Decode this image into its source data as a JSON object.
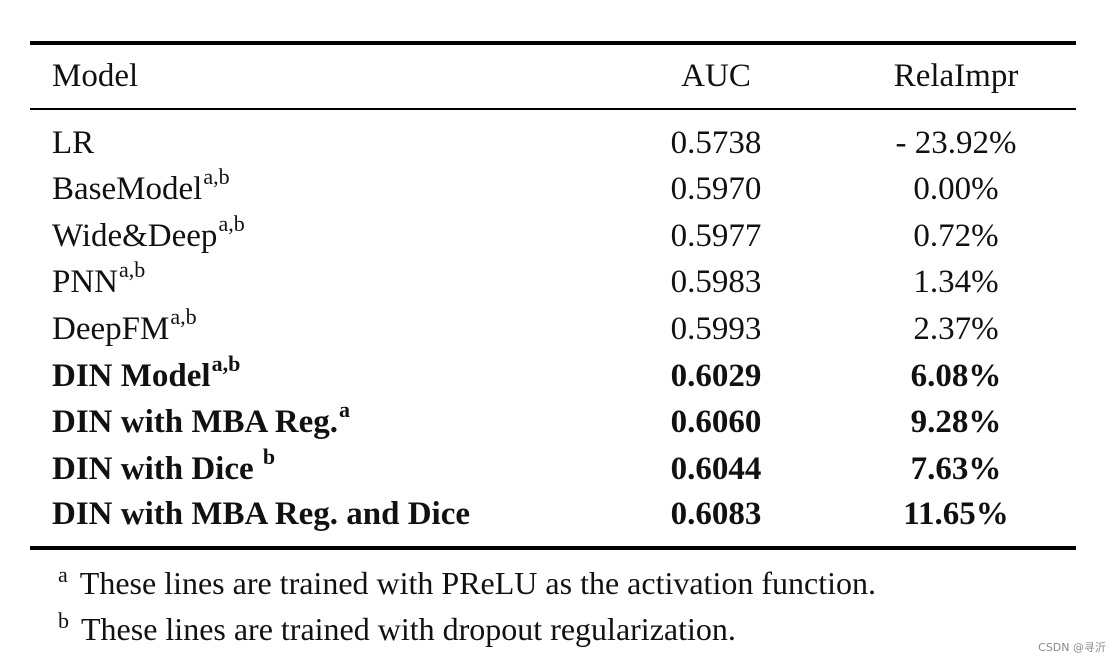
{
  "header": {
    "model": "Model",
    "auc": "AUC",
    "impr": "RelaImpr"
  },
  "rows": [
    {
      "model": "LR",
      "sup": "",
      "auc": "0.5738",
      "impr": "- 23.92%",
      "bold": false
    },
    {
      "model": "BaseModel",
      "sup": "a,b",
      "auc": "0.5970",
      "impr": "0.00%",
      "bold": false
    },
    {
      "model": "Wide&Deep",
      "sup": "a,b",
      "auc": "0.5977",
      "impr": "0.72%",
      "bold": false
    },
    {
      "model": "PNN",
      "sup": "a,b",
      "auc": "0.5983",
      "impr": "1.34%",
      "bold": false
    },
    {
      "model": "DeepFM",
      "sup": "a,b",
      "auc": "0.5993",
      "impr": "2.37%",
      "bold": false
    },
    {
      "model": "DIN Model",
      "sup": "a,b",
      "auc": "0.6029",
      "impr": "6.08%",
      "bold": true
    },
    {
      "model": "DIN with MBA Reg.",
      "sup": "a",
      "auc": "0.6060",
      "impr": "9.28%",
      "bold": true
    },
    {
      "model": "DIN with Dice ",
      "sup": "b",
      "auc": "0.6044",
      "impr": "7.63%",
      "bold": true
    },
    {
      "model": "DIN with MBA Reg. and Dice",
      "sup": "",
      "auc": "0.6083",
      "impr": "11.65%",
      "bold": true
    }
  ],
  "notes": [
    {
      "mark": "a",
      "text": "These lines are trained with PReLU as the activation function."
    },
    {
      "mark": "b",
      "text": "These lines are trained with dropout regularization."
    }
  ],
  "watermark": "CSDN @寻沂"
}
